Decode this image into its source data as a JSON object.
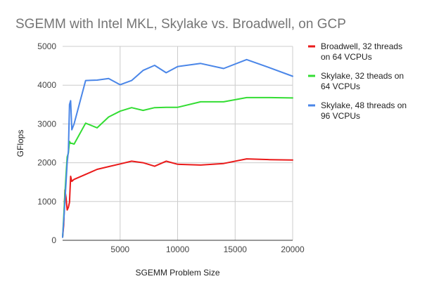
{
  "chart_data": {
    "type": "line",
    "title": "SGEMM with Intel MKL, Skylake vs. Broadwell, on GCP",
    "xlabel": "SGEMM Problem Size",
    "ylabel": "GFlops",
    "xlim": [
      0,
      20000
    ],
    "ylim": [
      0,
      5000
    ],
    "x_ticks": [
      5000,
      10000,
      15000,
      20000
    ],
    "y_ticks": [
      0,
      1000,
      2000,
      3000,
      4000,
      5000
    ],
    "grid": true,
    "legend_position": "right",
    "series": [
      {
        "name": "Broadwell, 32 threads on 64 VCPUs",
        "color": "#ea1a1a",
        "x": [
          0,
          100,
          200,
          300,
          400,
          500,
          600,
          700,
          800,
          1000,
          2000,
          3000,
          4000,
          5000,
          6000,
          7000,
          8000,
          9000,
          10000,
          12000,
          14000,
          16000,
          18000,
          20000
        ],
        "y": [
          80,
          400,
          1300,
          1100,
          780,
          850,
          980,
          1650,
          1520,
          1570,
          1700,
          1830,
          1900,
          1970,
          2040,
          2000,
          1910,
          2040,
          1960,
          1940,
          1980,
          2100,
          2080,
          2070
        ]
      },
      {
        "name": "Skylake, 32 theads on 64 VCPUs",
        "color": "#33dd33",
        "x": [
          0,
          100,
          200,
          300,
          400,
          500,
          600,
          700,
          800,
          1000,
          2000,
          3000,
          4000,
          5000,
          6000,
          7000,
          8000,
          9000,
          10000,
          12000,
          14000,
          16000,
          18000,
          20000
        ],
        "y": [
          80,
          600,
          1200,
          1700,
          2150,
          2250,
          2550,
          2500,
          2500,
          2480,
          3020,
          2900,
          3180,
          3330,
          3420,
          3350,
          3420,
          3430,
          3430,
          3570,
          3570,
          3680,
          3680,
          3670
        ]
      },
      {
        "name": "Skylake, 48 threads on 96 VCPUs",
        "color": "#4a86e8",
        "x": [
          0,
          100,
          200,
          300,
          400,
          500,
          600,
          700,
          800,
          1000,
          2000,
          3000,
          4000,
          5000,
          6000,
          7000,
          8000,
          9000,
          10000,
          12000,
          14000,
          16000,
          18000,
          20000
        ],
        "y": [
          80,
          500,
          1000,
          1500,
          2000,
          2300,
          3500,
          3600,
          2850,
          3000,
          4120,
          4130,
          4170,
          4010,
          4120,
          4380,
          4510,
          4320,
          4480,
          4560,
          4430,
          4660,
          4450,
          4230
        ]
      }
    ]
  }
}
